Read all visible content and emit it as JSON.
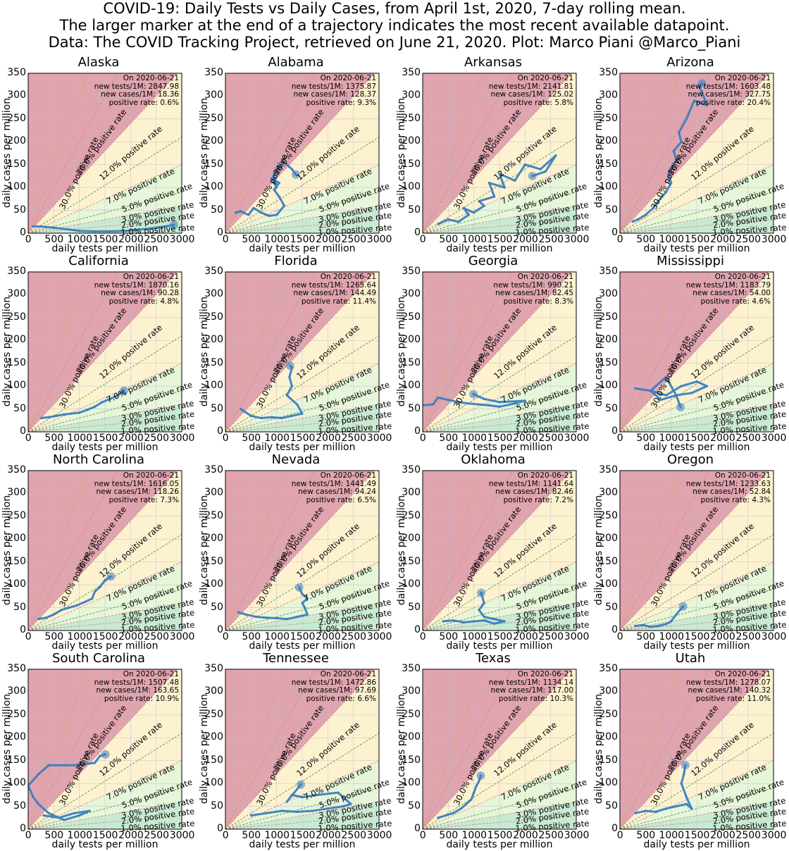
{
  "title_lines": [
    "COVID-19: Daily Tests vs Daily Cases, from April 1st, 2020, 7-day rolling mean.",
    "The larger marker at the end of a trajectory indicates the most recent available datapoint.",
    "Data: The COVID Tracking Project, retrieved on June 21, 2020. Plot: Marco Piani @Marco_Piani"
  ],
  "axes": {
    "xlabel": "daily tests per million",
    "ylabel": "daily cases per million",
    "xlim": [
      0,
      3000
    ],
    "ylim": [
      0,
      350
    ],
    "xticks": [
      "0",
      "500",
      "1000",
      "1500",
      "2000",
      "2500",
      "3000"
    ],
    "yticks": [
      "0",
      "50",
      "100",
      "150",
      "200",
      "250",
      "300",
      "350"
    ],
    "grid": true
  },
  "rates": [
    {
      "value": 0.3,
      "label": "30.0% positive rate"
    },
    {
      "value": 0.2,
      "label": "20.0% positive rate"
    },
    {
      "value": 0.12,
      "label": "12.0% positive rate"
    },
    {
      "value": 0.07,
      "label": "7.0% positive rate"
    },
    {
      "value": 0.05,
      "label": "5.0% positive rate"
    },
    {
      "value": 0.03,
      "label": "3.0% positive rate"
    },
    {
      "value": 0.02,
      "label": "2.0% positive rate"
    },
    {
      "value": 0.01,
      "label": "1.0% positive rate"
    }
  ],
  "colors": {
    "band_high": "#e0a4ae",
    "band_mid": "#fdf2d0",
    "band_low": "#e7f5d9",
    "band_lowest": "#c9ead2",
    "line_red": "#d08a8a",
    "line_orange": "#d7a35a",
    "line_green": "#4c9c4c",
    "trajectory": "#3a7ebf",
    "grid": "#b6b6cf"
  },
  "chart_data": [
    {
      "type": "line",
      "state": "Alaska",
      "info": [
        "On 2020-06-21",
        "new tests/1M: 2847.98",
        "new cases/1M: 18.36",
        "positive rate: 0.6%"
      ],
      "series": [
        {
          "x": [
            100,
            300,
            500,
            800,
            1000,
            1300,
            1600,
            1900,
            2200,
            2500,
            2700,
            2848
          ],
          "y": [
            15,
            14,
            12,
            8,
            5,
            4,
            4,
            5,
            8,
            12,
            15,
            18.36
          ]
        }
      ]
    },
    {
      "type": "line",
      "state": "Alabama",
      "info": [
        "On 2020-06-21",
        "new tests/1M: 1375.87",
        "new cases/1M: 128.37",
        "positive rate: 9.3%"
      ],
      "series": [
        {
          "x": [
            200,
            300,
            450,
            550,
            700,
            850,
            1000,
            1150,
            1050,
            950,
            1050,
            900,
            1000,
            950,
            1100,
            1150,
            1250,
            1300,
            1376
          ],
          "y": [
            45,
            48,
            40,
            55,
            45,
            38,
            40,
            60,
            80,
            95,
            110,
            120,
            100,
            130,
            150,
            155,
            145,
            140,
            128.37
          ]
        }
      ]
    },
    {
      "type": "line",
      "state": "Arkansas",
      "info": [
        "On 2020-06-21",
        "new tests/1M: 2141.81",
        "new cases/1M: 125.02",
        "positive rate: 5.8%"
      ],
      "series": [
        {
          "x": [
            300,
            500,
            700,
            900,
            800,
            1000,
            1200,
            1100,
            1400,
            1300,
            1600,
            1500,
            1800,
            2000,
            2300,
            2600,
            2400,
            2142
          ],
          "y": [
            20,
            30,
            25,
            40,
            55,
            45,
            60,
            70,
            80,
            110,
            100,
            130,
            115,
            150,
            140,
            170,
            135,
            125.02
          ]
        }
      ]
    },
    {
      "type": "line",
      "state": "Arizona",
      "info": [
        "On 2020-06-21",
        "new tests/1M: 1603.48",
        "new cases/1M: 327.75",
        "positive rate: 20.4%"
      ],
      "series": [
        {
          "x": [
            250,
            350,
            500,
            650,
            750,
            900,
            1000,
            950,
            1100,
            1050,
            1200,
            1150,
            1300,
            1450,
            1700,
            1600,
            1550,
            1603
          ],
          "y": [
            25,
            30,
            40,
            55,
            70,
            90,
            110,
            130,
            160,
            180,
            200,
            220,
            250,
            290,
            280,
            310,
            320,
            327.75
          ]
        }
      ]
    },
    {
      "type": "line",
      "state": "California",
      "info": [
        "On 2020-06-21",
        "new tests/1M: 1870.16",
        "new cases/1M: 90.28",
        "positive rate: 4.8%"
      ],
      "series": [
        {
          "x": [
            250,
            400,
            550,
            700,
            850,
            1000,
            1150,
            1300,
            1450,
            1600,
            1750,
            1870
          ],
          "y": [
            30,
            32,
            35,
            38,
            40,
            42,
            48,
            55,
            65,
            72,
            80,
            90.28
          ]
        }
      ]
    },
    {
      "type": "line",
      "state": "Florida",
      "info": [
        "On 2020-06-21",
        "new tests/1M: 1265.64",
        "new cases/1M: 144.49",
        "positive rate: 11.4%"
      ],
      "series": [
        {
          "x": [
            300,
            500,
            700,
            900,
            1100,
            1300,
            1500,
            1400,
            1200,
            1300,
            1250,
            1300,
            1266
          ],
          "y": [
            50,
            35,
            30,
            32,
            30,
            35,
            40,
            60,
            80,
            100,
            120,
            140,
            144.49
          ]
        }
      ]
    },
    {
      "type": "line",
      "state": "Georgia",
      "info": [
        "On 2020-06-21",
        "new tests/1M: 990.21",
        "new cases/1M: 82.45",
        "positive rate: 8.3%"
      ],
      "series": [
        {
          "x": [
            0,
            200,
            300,
            500,
            700,
            900,
            1100,
            1300,
            1500,
            1800,
            2000,
            1500,
            1200,
            990
          ],
          "y": [
            58,
            60,
            75,
            70,
            65,
            62,
            60,
            58,
            55,
            62,
            68,
            65,
            72,
            82.45
          ]
        }
      ]
    },
    {
      "type": "line",
      "state": "Mississippi",
      "info": [
        "On 2020-06-21",
        "new tests/1M: 1183.79",
        "new cases/1M: 54.00",
        "positive rate: 4.6%"
      ],
      "series": [
        {
          "x": [
            300,
            600,
            900,
            1200,
            1500,
            1700,
            1400,
            1100,
            800,
            600,
            900,
            1100,
            1184
          ],
          "y": [
            95,
            90,
            80,
            100,
            110,
            100,
            85,
            80,
            70,
            90,
            120,
            80,
            54.0
          ]
        }
      ]
    },
    {
      "type": "line",
      "state": "North Carolina",
      "info": [
        "On 2020-06-21",
        "new tests/1M: 1616.05",
        "new cases/1M: 118.26",
        "positive rate: 7.3%"
      ],
      "series": [
        {
          "x": [
            200,
            350,
            500,
            650,
            800,
            950,
            1100,
            1250,
            1300,
            1400,
            1500,
            1616
          ],
          "y": [
            25,
            28,
            35,
            45,
            50,
            55,
            62,
            70,
            85,
            95,
            110,
            118.26
          ]
        }
      ]
    },
    {
      "type": "line",
      "state": "Nevada",
      "info": [
        "On 2020-06-21",
        "new tests/1M: 1441.49",
        "new cases/1M: 94.24",
        "positive rate: 6.5%"
      ],
      "series": [
        {
          "x": [
            250,
            400,
            600,
            800,
            1000,
            1200,
            1400,
            1600,
            1550,
            1500,
            1600,
            1500,
            1441
          ],
          "y": [
            40,
            35,
            30,
            28,
            27,
            25,
            30,
            35,
            50,
            60,
            70,
            80,
            94.24
          ]
        }
      ]
    },
    {
      "type": "line",
      "state": "Oklahoma",
      "info": [
        "On 2020-06-21",
        "new tests/1M: 1141.64",
        "new cases/1M: 82.46",
        "positive rate: 7.2%"
      ],
      "series": [
        {
          "x": [
            400,
            600,
            800,
            1000,
            1200,
            1400,
            1600,
            1400,
            1200,
            1100,
            1200,
            1142
          ],
          "y": [
            20,
            22,
            18,
            20,
            22,
            15,
            20,
            25,
            30,
            45,
            60,
            82.46
          ]
        }
      ]
    },
    {
      "type": "line",
      "state": "Oregon",
      "info": [
        "On 2020-06-21",
        "new tests/1M: 1233.63",
        "new cases/1M: 52.84",
        "positive rate: 4.3%"
      ],
      "series": [
        {
          "x": [
            300,
            450,
            600,
            750,
            900,
            1000,
            1100,
            1234
          ],
          "y": [
            10,
            12,
            8,
            10,
            14,
            20,
            35,
            52.84
          ]
        }
      ]
    },
    {
      "type": "line",
      "state": "South Carolina",
      "info": [
        "On 2020-06-21",
        "new tests/1M: 1507.48",
        "new cases/1M: 163.65",
        "positive rate: 10.9%"
      ],
      "series": [
        {
          "x": [
            300,
            600,
            900,
            1200,
            1000,
            700,
            400,
            200,
            100,
            0,
            200,
            400,
            900,
            1300,
            1400,
            1508
          ],
          "y": [
            30,
            25,
            35,
            40,
            30,
            20,
            35,
            55,
            70,
            95,
            120,
            140,
            140,
            145,
            160,
            163.65
          ]
        }
      ]
    },
    {
      "type": "line",
      "state": "Tennessee",
      "info": [
        "On 2020-06-21",
        "new tests/1M: 1472.86",
        "new cases/1M: 97.69",
        "positive rate: 6.6%"
      ],
      "series": [
        {
          "x": [
            500,
            800,
            1100,
            1400,
            1700,
            2000,
            2300,
            2450,
            2200,
            1800,
            1500,
            1300,
            1200,
            1473
          ],
          "y": [
            30,
            35,
            40,
            38,
            40,
            45,
            50,
            55,
            80,
            75,
            70,
            75,
            60,
            97.69
          ]
        }
      ]
    },
    {
      "type": "line",
      "state": "Texas",
      "info": [
        "On 2020-06-21",
        "new tests/1M: 1134.14",
        "new cases/1M: 117.00",
        "positive rate: 10.3%"
      ],
      "series": [
        {
          "x": [
            300,
            450,
            600,
            750,
            850,
            950,
            1000,
            1050,
            1100,
            1134
          ],
          "y": [
            25,
            30,
            35,
            45,
            55,
            65,
            80,
            95,
            105,
            117.0
          ]
        }
      ]
    },
    {
      "type": "line",
      "state": "Utah",
      "info": [
        "On 2020-06-21",
        "new tests/1M: 1278.07",
        "new cases/1M: 140.32",
        "positive rate: 11.0%"
      ],
      "series": [
        {
          "x": [
            300,
            500,
            700,
            900,
            1100,
            1300,
            1400,
            1300,
            1200,
            1250,
            1278
          ],
          "y": [
            35,
            40,
            38,
            45,
            50,
            55,
            45,
            70,
            100,
            120,
            140.32
          ]
        }
      ]
    }
  ]
}
